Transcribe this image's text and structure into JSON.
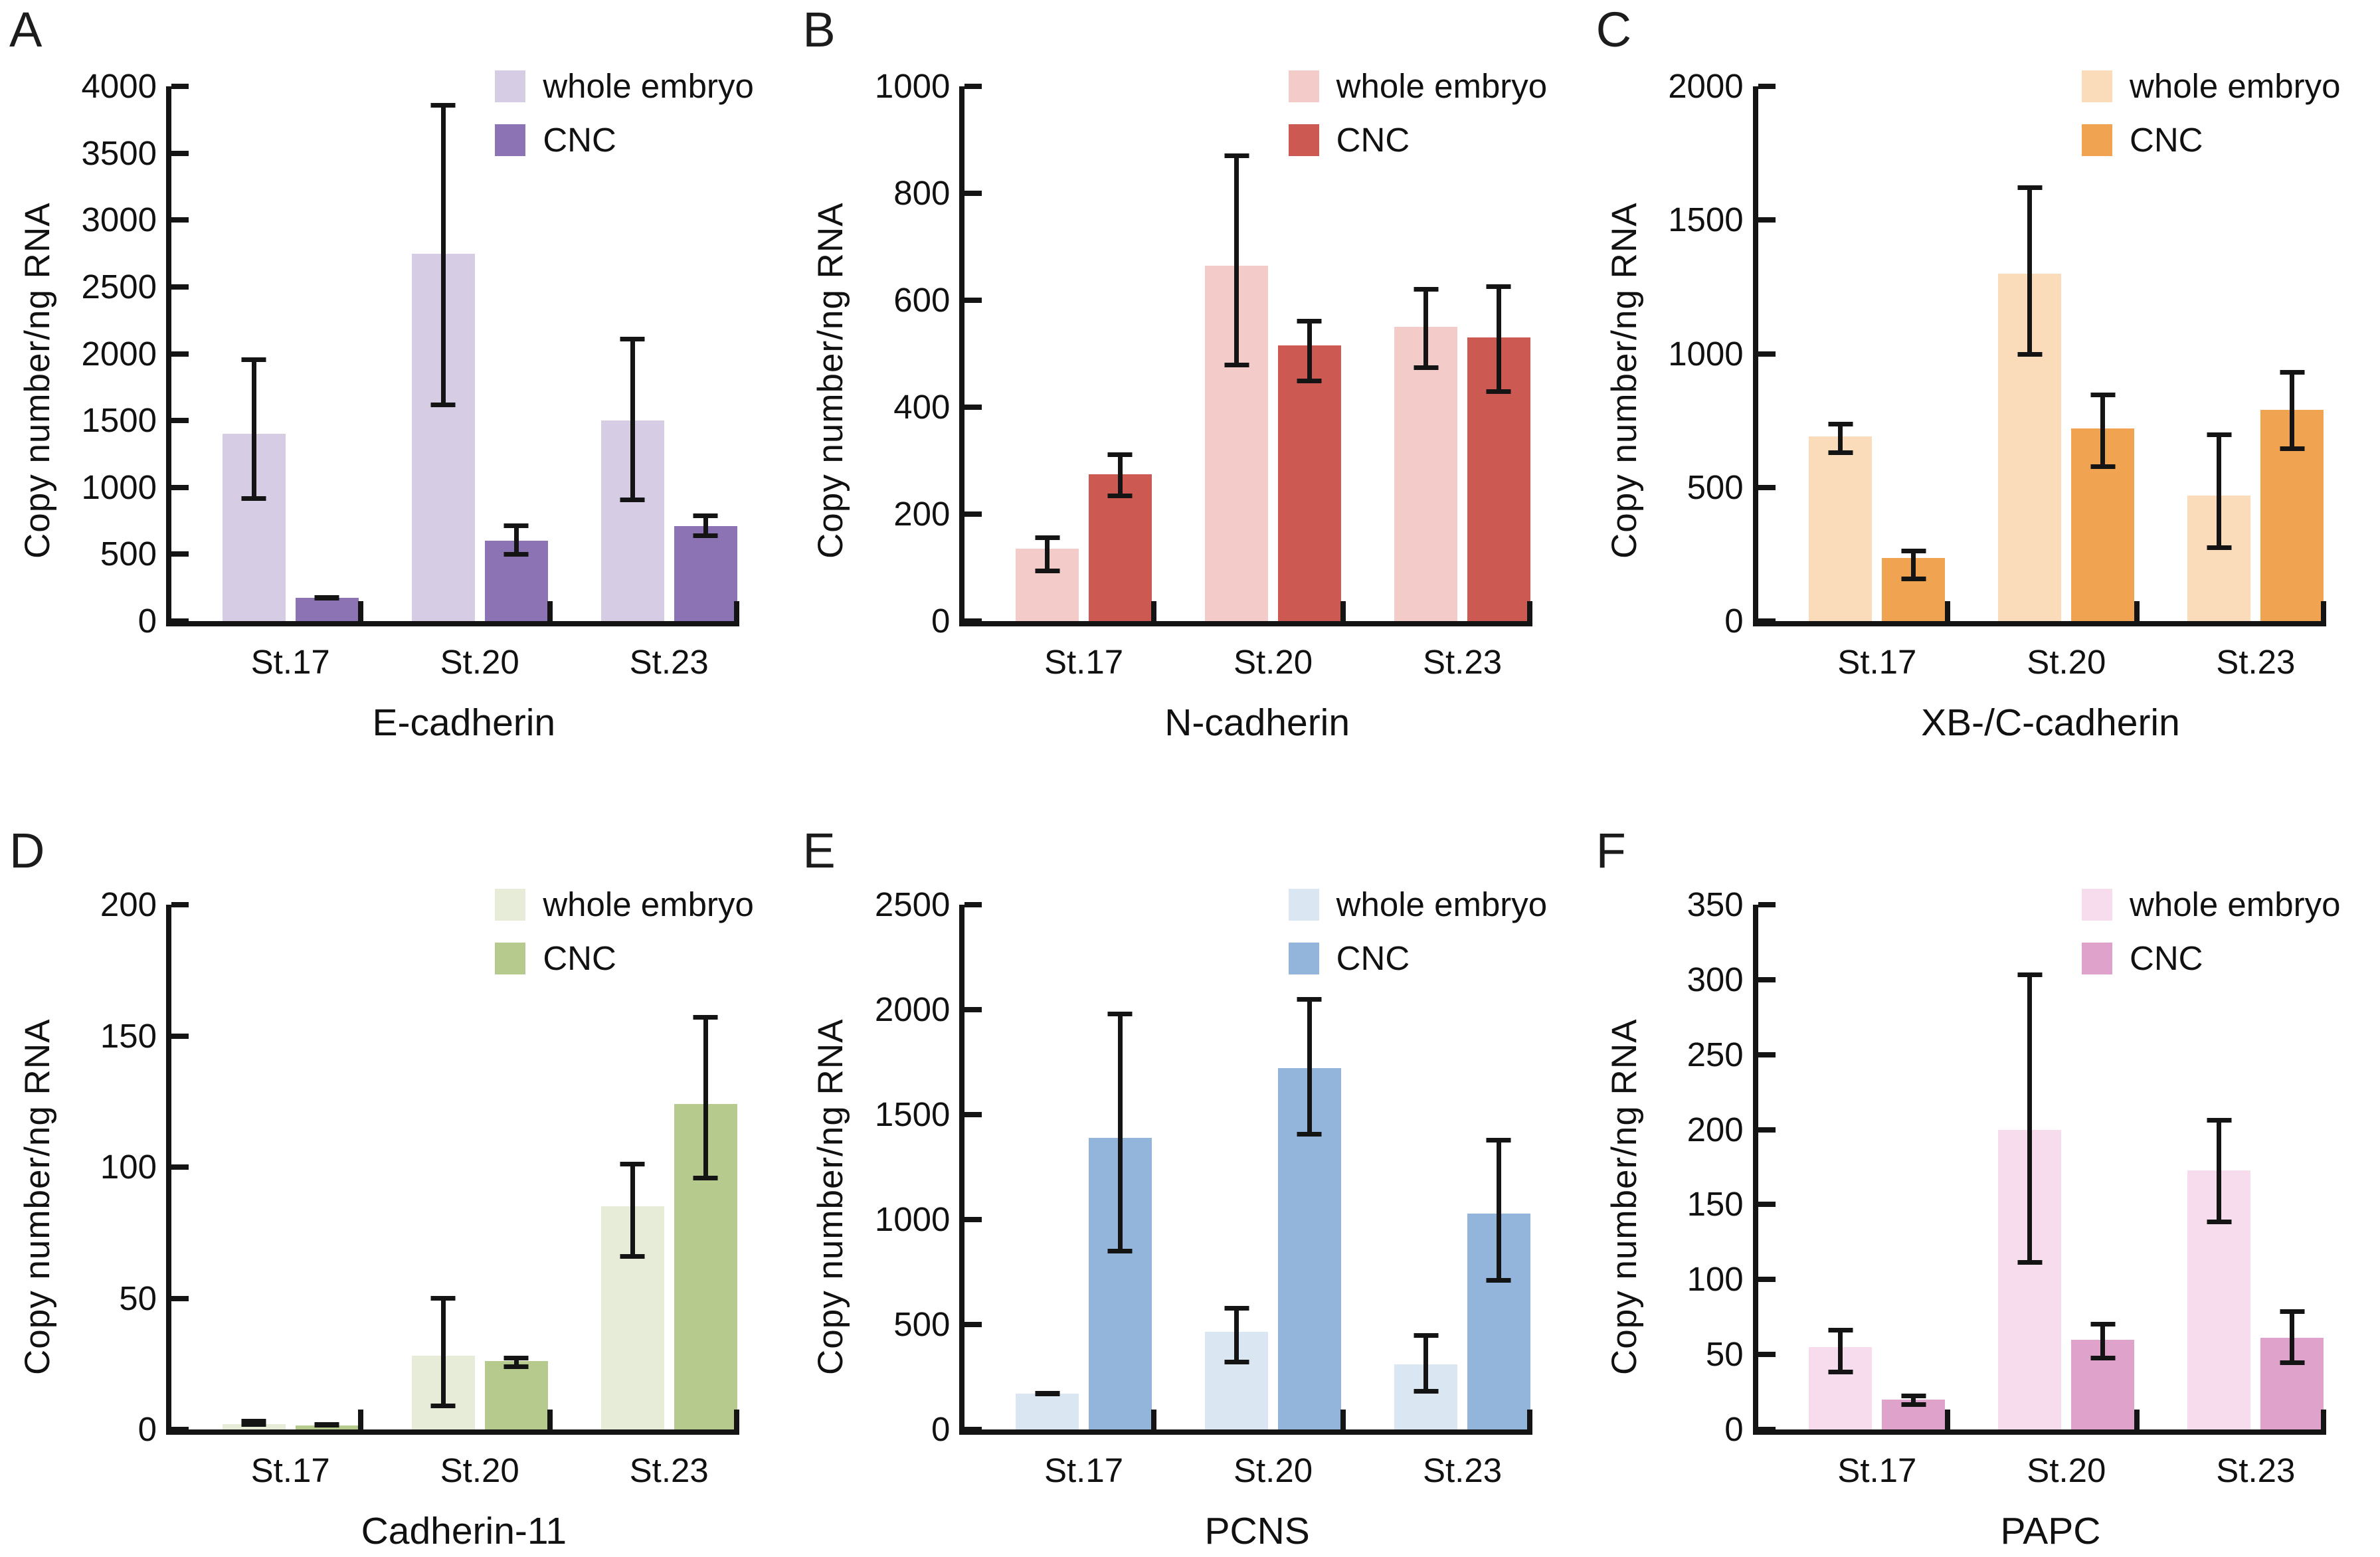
{
  "figure": {
    "background": "#ffffff",
    "rows": 2,
    "columns": 3
  },
  "chart_data": [
    {
      "type": "bar",
      "panel": "A",
      "title": "E-cadherin",
      "ylabel": "Copy number/ng RNA",
      "categories": [
        "St.17",
        "St.20",
        "St.23"
      ],
      "legend": [
        "whole embryo",
        "CNC"
      ],
      "legend_position": "top-right",
      "grid": false,
      "ylim": [
        0,
        4000
      ],
      "yticks": [
        0,
        500,
        1000,
        1500,
        2000,
        2500,
        3000,
        3500,
        4000
      ],
      "colors": {
        "whole_embryo": "#d6cde5",
        "cnc": "#8c74b4"
      },
      "series": [
        {
          "name": "whole embryo",
          "values": [
            1400,
            2750,
            1500
          ],
          "err_low": [
            900,
            1600,
            890
          ],
          "err_high": [
            1975,
            3875,
            2125
          ]
        },
        {
          "name": "CNC",
          "values": [
            175,
            600,
            710
          ],
          "err_low": [
            155,
            480,
            620
          ],
          "err_high": [
            195,
            730,
            805
          ]
        }
      ]
    },
    {
      "type": "bar",
      "panel": "B",
      "title": "N-cadherin",
      "ylabel": "Copy number/ng RNA",
      "categories": [
        "St.17",
        "St.20",
        "St.23"
      ],
      "legend": [
        "whole embryo",
        "CNC"
      ],
      "legend_position": "top-right",
      "grid": false,
      "ylim": [
        0,
        1000
      ],
      "yticks": [
        0,
        200,
        400,
        600,
        800,
        1000
      ],
      "colors": {
        "whole_embryo": "#f3cbc8",
        "cnc": "#cc5a52"
      },
      "series": [
        {
          "name": "whole embryo",
          "values": [
            135,
            665,
            550
          ],
          "err_low": [
            90,
            475,
            470
          ],
          "err_high": [
            160,
            875,
            625
          ]
        },
        {
          "name": "CNC",
          "values": [
            275,
            515,
            530
          ],
          "err_low": [
            230,
            445,
            425
          ],
          "err_high": [
            315,
            565,
            630
          ]
        }
      ]
    },
    {
      "type": "bar",
      "panel": "C",
      "title": "XB-/C-cadherin",
      "ylabel": "Copy number/ng RNA",
      "categories": [
        "St.17",
        "St.20",
        "St.23"
      ],
      "legend": [
        "whole embryo",
        "CNC"
      ],
      "legend_position": "top-right",
      "grid": false,
      "ylim": [
        0,
        2000
      ],
      "yticks": [
        0,
        500,
        1000,
        1500,
        2000
      ],
      "colors": {
        "whole_embryo": "#fadcba",
        "cnc": "#f0a350"
      },
      "series": [
        {
          "name": "whole embryo",
          "values": [
            690,
            1300,
            470
          ],
          "err_low": [
            620,
            990,
            265
          ],
          "err_high": [
            745,
            1630,
            705
          ]
        },
        {
          "name": "CNC",
          "values": [
            235,
            720,
            790
          ],
          "err_low": [
            150,
            570,
            635
          ],
          "err_high": [
            270,
            855,
            940
          ]
        }
      ]
    },
    {
      "type": "bar",
      "panel": "D",
      "title": "Cadherin-11",
      "ylabel": "Copy number/ng RNA",
      "categories": [
        "St.17",
        "St.20",
        "St.23"
      ],
      "legend": [
        "whole embryo",
        "CNC"
      ],
      "legend_position": "top-right",
      "grid": false,
      "ylim": [
        0,
        200
      ],
      "yticks": [
        0,
        50,
        100,
        150,
        200
      ],
      "colors": {
        "whole_embryo": "#e7ecd8",
        "cnc": "#b5ca8c"
      },
      "series": [
        {
          "name": "whole embryo",
          "values": [
            2,
            28,
            85
          ],
          "err_low": [
            1,
            8,
            65
          ],
          "err_high": [
            4,
            51,
            102
          ]
        },
        {
          "name": "CNC",
          "values": [
            1.5,
            26,
            124
          ],
          "err_low": [
            1,
            23,
            95
          ],
          "err_high": [
            2.5,
            28,
            158
          ]
        }
      ]
    },
    {
      "type": "bar",
      "panel": "E",
      "title": "PCNS",
      "ylabel": "Copy number/ng RNA",
      "categories": [
        "St.17",
        "St.20",
        "St.23"
      ],
      "legend": [
        "whole embryo",
        "CNC"
      ],
      "legend_position": "top-right",
      "grid": false,
      "ylim": [
        0,
        2500
      ],
      "yticks": [
        0,
        500,
        1000,
        1500,
        2000,
        2500
      ],
      "colors": {
        "whole_embryo": "#dbe6f3",
        "cnc": "#93b5dc"
      },
      "series": [
        {
          "name": "whole embryo",
          "values": [
            170,
            465,
            310
          ],
          "err_low": [
            158,
            310,
            170
          ],
          "err_high": [
            185,
            590,
            460
          ]
        },
        {
          "name": "CNC",
          "values": [
            1390,
            1720,
            1030
          ],
          "err_low": [
            840,
            1395,
            700
          ],
          "err_high": [
            1990,
            2060,
            1390
          ]
        }
      ]
    },
    {
      "type": "bar",
      "panel": "F",
      "title": "PAPC",
      "ylabel": "Copy number/ng RNA",
      "categories": [
        "St.17",
        "St.20",
        "St.23"
      ],
      "legend": [
        "whole embryo",
        "CNC"
      ],
      "legend_position": "top-right",
      "grid": false,
      "ylim": [
        0,
        350
      ],
      "yticks": [
        0,
        50,
        100,
        150,
        200,
        250,
        300,
        350
      ],
      "colors": {
        "whole_embryo": "#f6dcec",
        "cnc": "#dfa3cb"
      },
      "series": [
        {
          "name": "whole embryo",
          "values": [
            55,
            200,
            173
          ],
          "err_low": [
            37,
            110,
            137
          ],
          "err_high": [
            68,
            305,
            208
          ]
        },
        {
          "name": "CNC",
          "values": [
            20,
            60,
            61
          ],
          "err_low": [
            15,
            46,
            43
          ],
          "err_high": [
            24,
            72,
            80
          ]
        }
      ]
    }
  ]
}
